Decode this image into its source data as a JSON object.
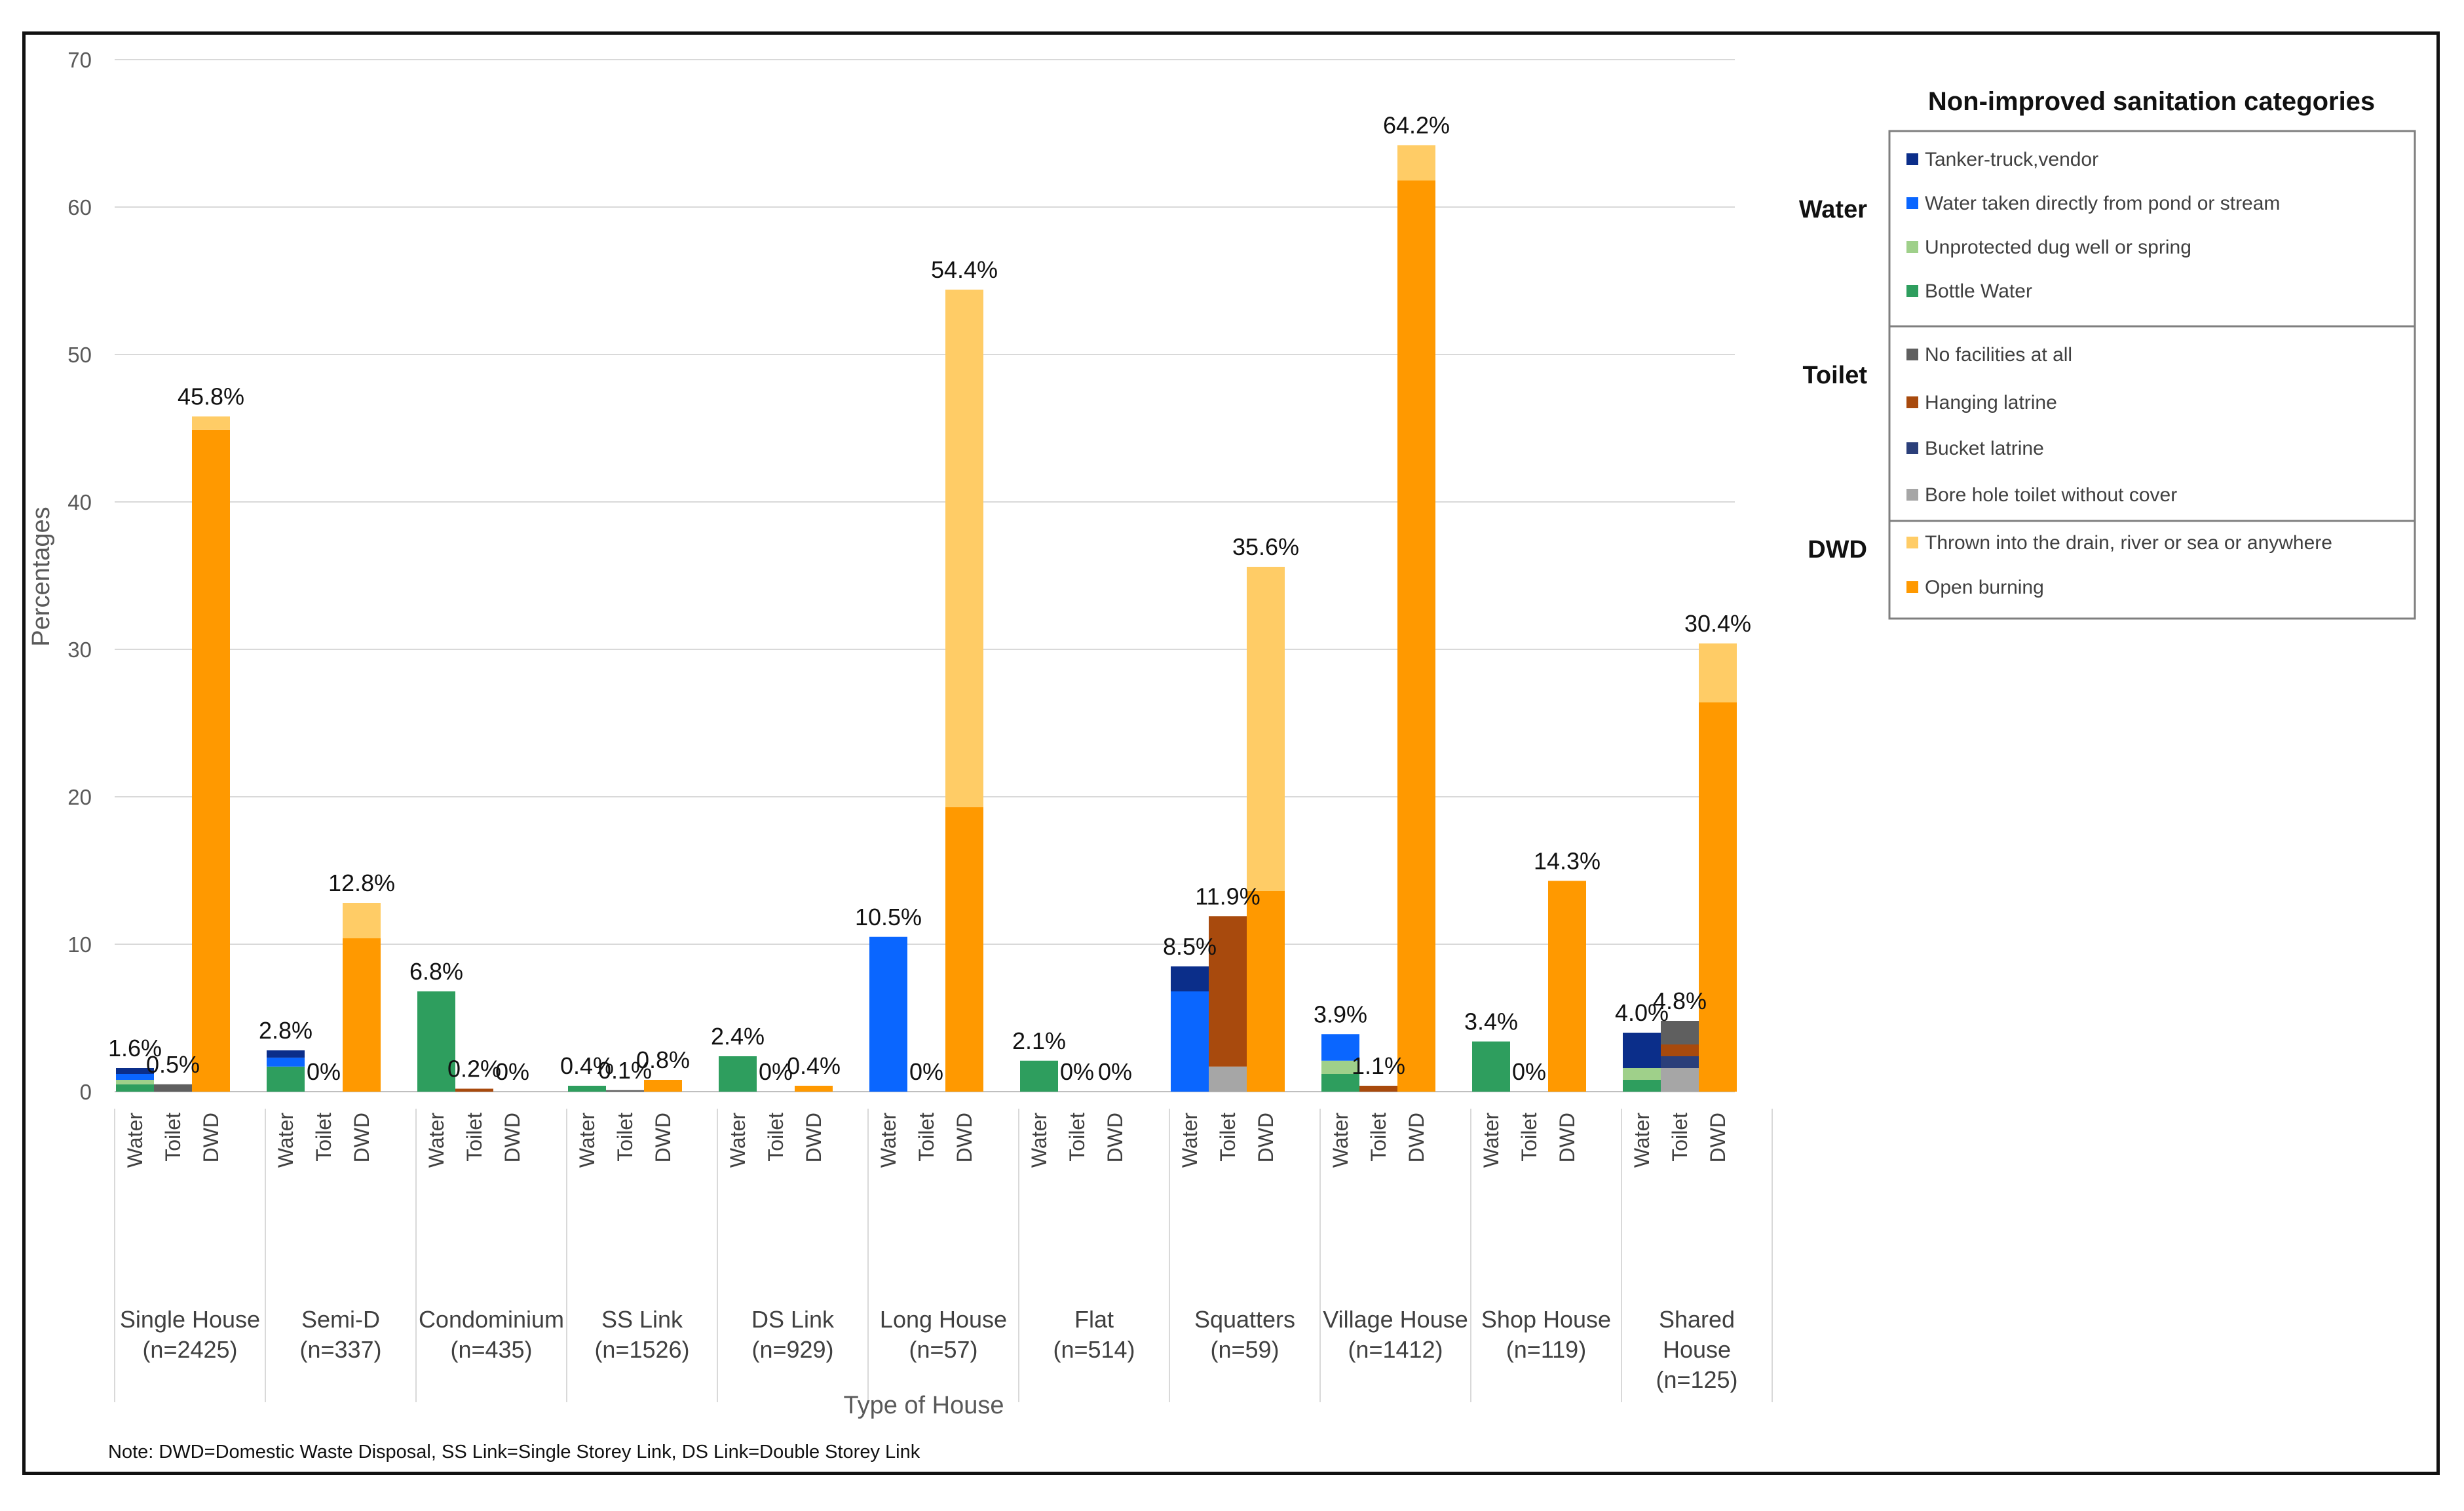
{
  "chart_data": {
    "type": "bar",
    "stacked": true,
    "ylabel": "Percentages",
    "xlabel": "Type of House",
    "ylim": [
      0,
      70
    ],
    "yticks": [
      "0",
      "10",
      "20",
      "30",
      "40",
      "50",
      "60",
      "70"
    ],
    "sub_labels": [
      "Water",
      "Toilet",
      "DWD"
    ],
    "groups": [
      {
        "name": "Single House",
        "n": "(n=2425)",
        "totals": {
          "Water": "1.6%",
          "Toilet": "0.5%",
          "DWD": "45.8%"
        },
        "stacks": {
          "Water": [
            0.5,
            0.3,
            0.4,
            0.4
          ],
          "Toilet": [
            0,
            0,
            0,
            0.5
          ],
          "DWD": [
            44.9,
            0.9
          ]
        }
      },
      {
        "name": "Semi-D",
        "n": "(n=337)",
        "totals": {
          "Water": "2.8%",
          "Toilet": "0%",
          "DWD": "12.8%"
        },
        "stacks": {
          "Water": [
            1.7,
            0,
            0.6,
            0.5
          ],
          "Toilet": [
            0,
            0,
            0,
            0
          ],
          "DWD": [
            10.4,
            2.4
          ]
        }
      },
      {
        "name": "Condominium",
        "n": "(n=435)",
        "totals": {
          "Water": "6.8%",
          "Toilet": "0.2%",
          "DWD": "0%"
        },
        "stacks": {
          "Water": [
            6.8,
            0,
            0,
            0
          ],
          "Toilet": [
            0,
            0,
            0.2,
            0
          ],
          "DWD": [
            0,
            0
          ]
        }
      },
      {
        "name": "SS Link",
        "n": "(n=1526)",
        "totals": {
          "Water": "0.4%",
          "Toilet": "0.1%",
          "DWD": "0.8%"
        },
        "stacks": {
          "Water": [
            0.4,
            0,
            0,
            0
          ],
          "Toilet": [
            0,
            0,
            0,
            0.1
          ],
          "DWD": [
            0.8,
            0
          ]
        }
      },
      {
        "name": "DS Link",
        "n": "(n=929)",
        "totals": {
          "Water": "2.4%",
          "Toilet": "0%",
          "DWD": "0.4%"
        },
        "stacks": {
          "Water": [
            2.4,
            0,
            0,
            0
          ],
          "Toilet": [
            0,
            0,
            0,
            0
          ],
          "DWD": [
            0.4,
            0
          ]
        }
      },
      {
        "name": "Long House",
        "n": "(n=57)",
        "totals": {
          "Water": "10.5%",
          "Toilet": "0%",
          "DWD": "54.4%"
        },
        "stacks": {
          "Water": [
            0,
            0,
            10.5,
            0
          ],
          "Toilet": [
            0,
            0,
            0,
            0
          ],
          "DWD": [
            19.3,
            35.1
          ]
        }
      },
      {
        "name": "Flat",
        "n": "(n=514)",
        "totals": {
          "Water": "2.1%",
          "Toilet": "0%",
          "DWD": "0%"
        },
        "stacks": {
          "Water": [
            2.1,
            0,
            0,
            0
          ],
          "Toilet": [
            0,
            0,
            0,
            0
          ],
          "DWD": [
            0,
            0
          ]
        }
      },
      {
        "name": "Squatters",
        "n": "(n=59)",
        "totals": {
          "Water": "8.5%",
          "Toilet": "11.9%",
          "DWD": "35.6%"
        },
        "stacks": {
          "Water": [
            0,
            0,
            6.8,
            1.7
          ],
          "Toilet": [
            1.7,
            0,
            10.2,
            0
          ],
          "DWD": [
            13.6,
            22.0
          ]
        }
      },
      {
        "name": "Village House",
        "n": "(n=1412)",
        "totals": {
          "Water": "3.9%",
          "Toilet": "1.1%",
          "DWD": "64.2%"
        },
        "stacks": {
          "Water": [
            1.2,
            0.9,
            1.8,
            0
          ],
          "Toilet": [
            0,
            0,
            0.4,
            0
          ],
          "DWD": [
            61.8,
            2.4
          ]
        }
      },
      {
        "name": "Shop House",
        "n": "(n=119)",
        "totals": {
          "Water": "3.4%",
          "Toilet": "0%",
          "DWD": "14.3%"
        },
        "stacks": {
          "Water": [
            3.4,
            0,
            0,
            0
          ],
          "Toilet": [
            0,
            0,
            0,
            0
          ],
          "DWD": [
            14.3,
            0
          ]
        }
      },
      {
        "name": "Shared House",
        "n": "(n=125)",
        "totals": {
          "Water": "4.0%",
          "Toilet": "4.8%",
          "DWD": "30.4%"
        },
        "stacks": {
          "Water": [
            0.8,
            0.8,
            0,
            2.4
          ],
          "Toilet": [
            1.6,
            0.8,
            0.8,
            1.6
          ],
          "DWD": [
            26.4,
            4.0
          ]
        }
      }
    ],
    "legend": {
      "title": "Non-improved sanitation categories",
      "position": "right",
      "sections": [
        {
          "name": "Water",
          "items": [
            {
              "label": "Tanker-truck,vendor",
              "color": "#0b2e8a"
            },
            {
              "label": "Water taken directly from pond or stream",
              "color": "#0a66ff"
            },
            {
              "label": "Unprotected dug well or spring",
              "color": "#9fd08a"
            },
            {
              "label": "Bottle Water",
              "color": "#2e9e5e"
            }
          ]
        },
        {
          "name": "Toilet",
          "items": [
            {
              "label": "No facilities at all",
              "color": "#5f5f5f"
            },
            {
              "label": "Hanging latrine",
              "color": "#a84a0d"
            },
            {
              "label": "Bucket latrine",
              "color": "#2b3f7a"
            },
            {
              "label": "Bore hole toilet without cover",
              "color": "#a6a6a6"
            }
          ]
        },
        {
          "name": "DWD",
          "items": [
            {
              "label": "Thrown into the drain, river or sea or anywhere",
              "color": "#ffcc66"
            },
            {
              "label": "Open burning",
              "color": "#ff9900"
            }
          ]
        }
      ]
    },
    "stack_order": {
      "Water": [
        "Bottle Water",
        "Unprotected dug well or spring",
        "Water taken directly from pond or stream",
        "Tanker-truck,vendor"
      ],
      "Toilet": [
        "Bore hole toilet without cover",
        "Bucket latrine",
        "Hanging latrine",
        "No facilities at all"
      ],
      "DWD": [
        "Open burning",
        "Thrown into the drain, river or sea or anywhere"
      ]
    },
    "note": "Note: DWD=Domestic Waste Disposal, SS Link=Single Storey Link, DS Link=Double Storey Link"
  }
}
